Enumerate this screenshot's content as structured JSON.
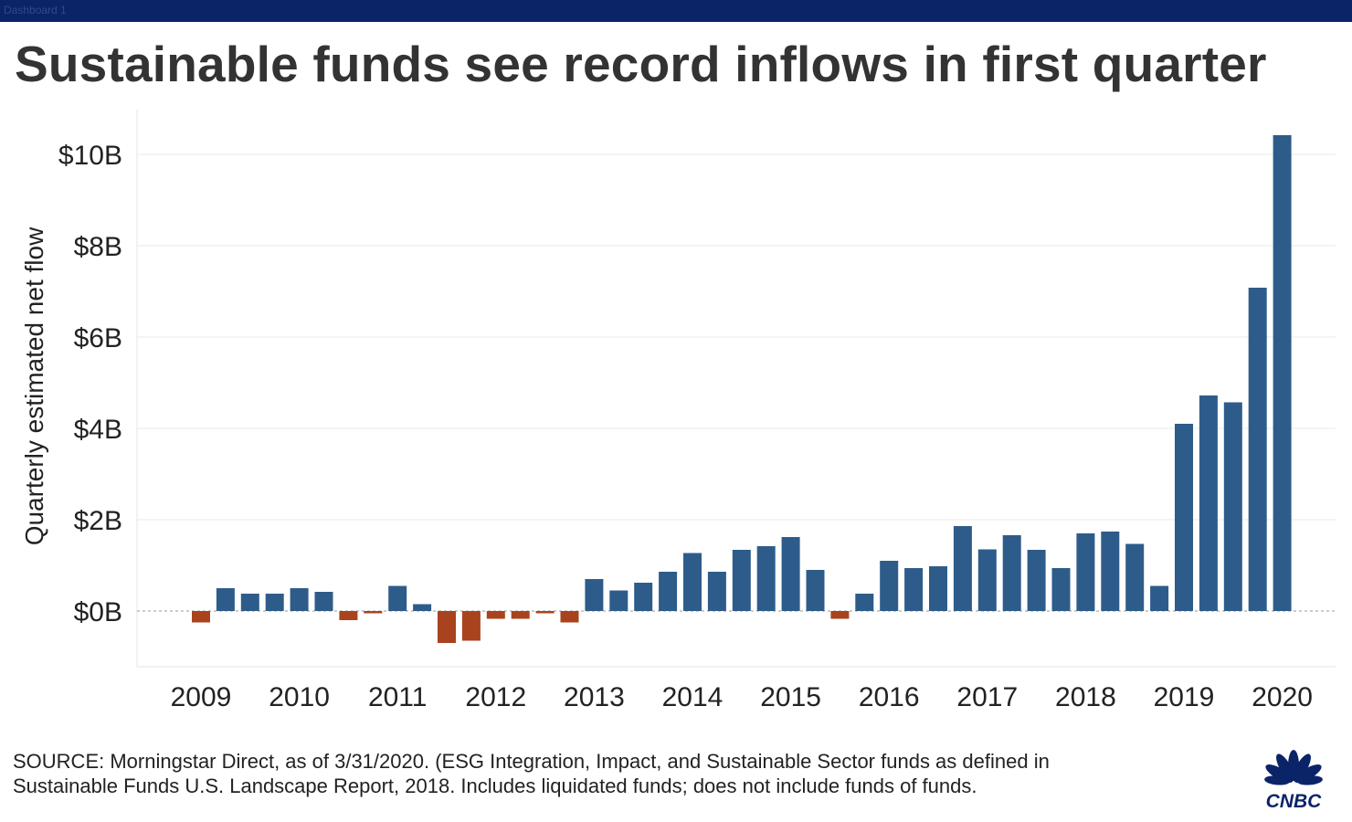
{
  "window": {
    "tab_label": "Dashboard 1"
  },
  "title": "Sustainable funds see record inflows in first quarter",
  "source": {
    "line1": "SOURCE: Morningstar Direct, as of 3/31/2020. (ESG Integration, Impact, and Sustainable Sector funds as defined in",
    "line2": " Sustainable Funds U.S. Landscape Report, 2018. Includes liquidated funds; does not include funds of funds."
  },
  "logo": {
    "text": "CNBC",
    "color": "#0b2468"
  },
  "colors": {
    "positive": "#2e5c8a",
    "negative": "#a9431e",
    "topbar": "#0b2468"
  },
  "chart_data": {
    "type": "bar",
    "title": "Sustainable funds see record inflows in first quarter",
    "ylabel": "Quarterly estimated net flow",
    "xlabel": "",
    "ylim": [
      -1.2,
      11
    ],
    "yticks": [
      {
        "value": 0,
        "label": "$0B"
      },
      {
        "value": 2,
        "label": "$2B"
      },
      {
        "value": 4,
        "label": "$4B"
      },
      {
        "value": 6,
        "label": "$6B"
      },
      {
        "value": 8,
        "label": "$8B"
      },
      {
        "value": 10,
        "label": "$10B"
      }
    ],
    "year_labels": [
      "2009",
      "2010",
      "2011",
      "2012",
      "2013",
      "2014",
      "2015",
      "2016",
      "2017",
      "2018",
      "2019",
      "2020"
    ],
    "grid": true,
    "categories": [
      "2009 Q1",
      "2009 Q2",
      "2009 Q3",
      "2009 Q4",
      "2010 Q1",
      "2010 Q2",
      "2010 Q3",
      "2010 Q4",
      "2011 Q1",
      "2011 Q2",
      "2011 Q3",
      "2011 Q4",
      "2012 Q1",
      "2012 Q2",
      "2012 Q3",
      "2012 Q4",
      "2013 Q1",
      "2013 Q2",
      "2013 Q3",
      "2013 Q4",
      "2014 Q1",
      "2014 Q2",
      "2014 Q3",
      "2014 Q4",
      "2015 Q1",
      "2015 Q2",
      "2015 Q3",
      "2015 Q4",
      "2016 Q1",
      "2016 Q2",
      "2016 Q3",
      "2016 Q4",
      "2017 Q1",
      "2017 Q2",
      "2017 Q3",
      "2017 Q4",
      "2018 Q1",
      "2018 Q2",
      "2018 Q3",
      "2018 Q4",
      "2019 Q1",
      "2019 Q2",
      "2019 Q3",
      "2019 Q4",
      "2020 Q1"
    ],
    "values": [
      -0.25,
      0.5,
      0.38,
      0.38,
      0.5,
      0.42,
      -0.2,
      -0.05,
      0.55,
      0.15,
      -0.7,
      -0.65,
      -0.17,
      -0.17,
      -0.05,
      -0.25,
      0.7,
      0.45,
      0.62,
      0.86,
      1.27,
      0.86,
      1.34,
      1.42,
      1.62,
      0.9,
      -0.17,
      0.38,
      1.1,
      0.94,
      0.98,
      1.86,
      1.35,
      1.66,
      1.34,
      0.94,
      1.7,
      1.74,
      1.47,
      0.55,
      4.1,
      4.72,
      4.57,
      7.08,
      10.42
    ]
  }
}
